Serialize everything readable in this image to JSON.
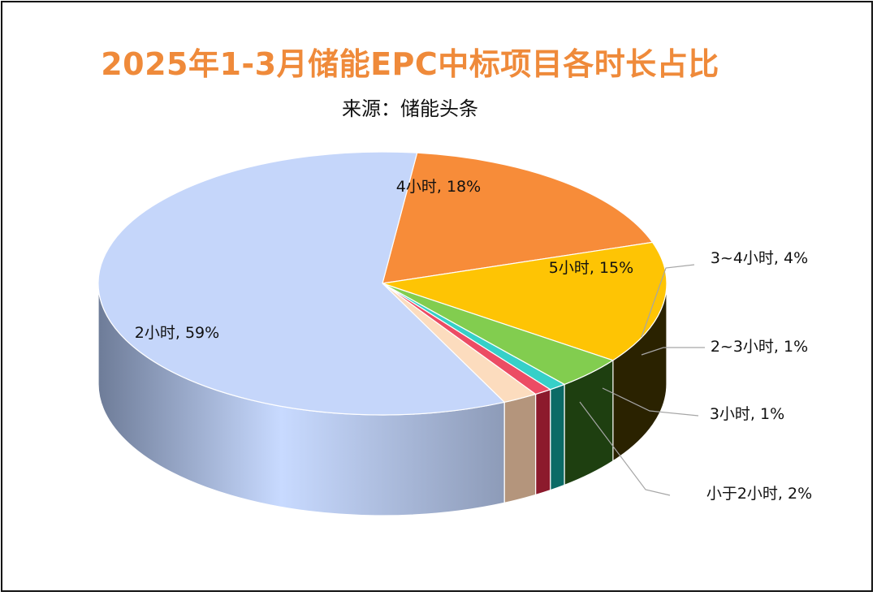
{
  "chart_data": {
    "type": "pie",
    "title": "2025年1-3月储能EPC中标项目各时长占比",
    "subtitle": "来源：储能头条",
    "slices": [
      {
        "label": "4小时, 18%",
        "value": 18,
        "color": "#f78c39",
        "side": "#8c4a16"
      },
      {
        "label": "5小时, 15%",
        "value": 15,
        "color": "#fec404",
        "side": "#2a2200"
      },
      {
        "label": "3~4小时, 4%",
        "value": 4,
        "color": "#82cd4f",
        "side": "#1e3f10"
      },
      {
        "label": "2~3小时, 1%",
        "value": 1,
        "color": "#36d0c8",
        "side": "#0b6b66"
      },
      {
        "label": "3小时, 1%",
        "value": 1,
        "color": "#ec4c64",
        "side": "#8c1a2c"
      },
      {
        "label": "小于2小时, 2%",
        "value": 2,
        "color": "#fcdcbe",
        "side": "#b4957c"
      },
      {
        "label": "2小时, 59%",
        "value": 59,
        "color": "#c5d6fa",
        "side": "#8f9fc0"
      }
    ]
  }
}
